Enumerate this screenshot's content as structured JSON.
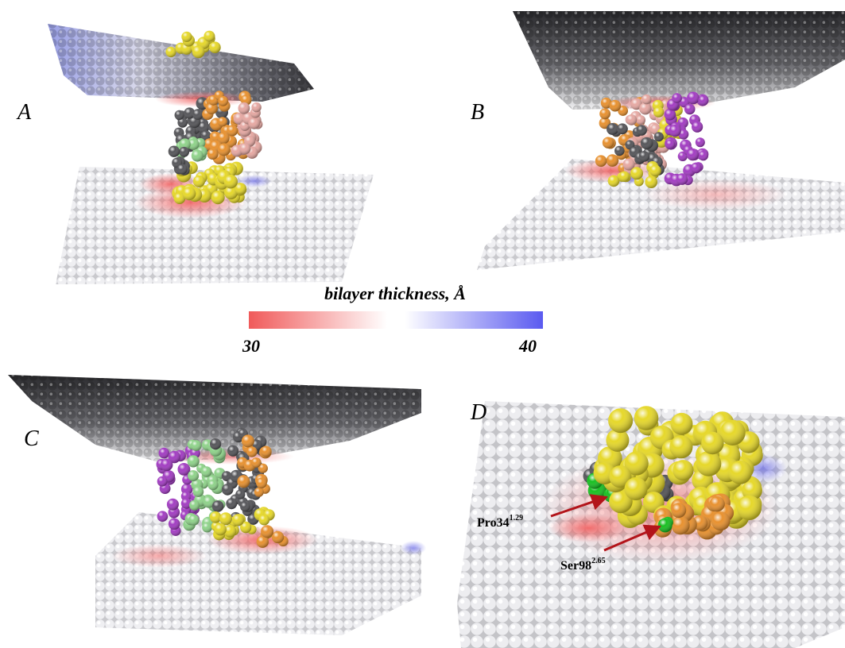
{
  "panels": {
    "a": {
      "letter": "A"
    },
    "b": {
      "letter": "B"
    },
    "c": {
      "letter": "C"
    },
    "d": {
      "letter": "D"
    }
  },
  "legend": {
    "title": "bilayer thickness, Å",
    "min_label": "30",
    "max_label": "40",
    "min_value": 30,
    "max_value": 40,
    "colors": {
      "low": "#f05a5a",
      "mid": "#ffffff",
      "high": "#5a5af0"
    }
  },
  "labels": {
    "pro": {
      "base": "Pro34",
      "sup": "1.29"
    },
    "ser": {
      "base": "Ser98",
      "sup": "2.65"
    }
  },
  "residue_colors": {
    "yellow": "#e6d82a",
    "orange": "#e8912f",
    "gray": "#555559",
    "pink": "#e6a8a2",
    "green": "#8fd38a",
    "purple": "#a23cc2",
    "bright_green": "#18c021",
    "arrow": "#b3141a"
  }
}
